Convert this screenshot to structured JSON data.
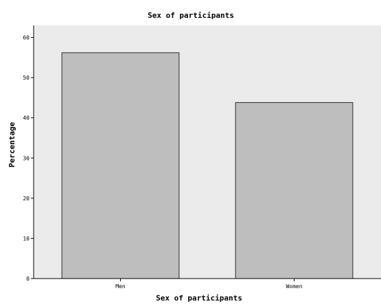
{
  "chart_data": {
    "type": "bar",
    "title": "Sex of participants",
    "xlabel": "Sex of participants",
    "ylabel": "Percentage",
    "categories": [
      "Men",
      "Women"
    ],
    "values": [
      56.2,
      43.8
    ],
    "ylim": [
      0,
      63
    ],
    "yticks": [
      "0",
      "10",
      "20",
      "30",
      "40",
      "50",
      "60"
    ],
    "grid": false,
    "legend": "none",
    "colors": {
      "plot_background": "#ebebeb",
      "bar_fill": "#bebebe",
      "bar_stroke": "#2b2b2b",
      "axis": "#000000"
    }
  }
}
